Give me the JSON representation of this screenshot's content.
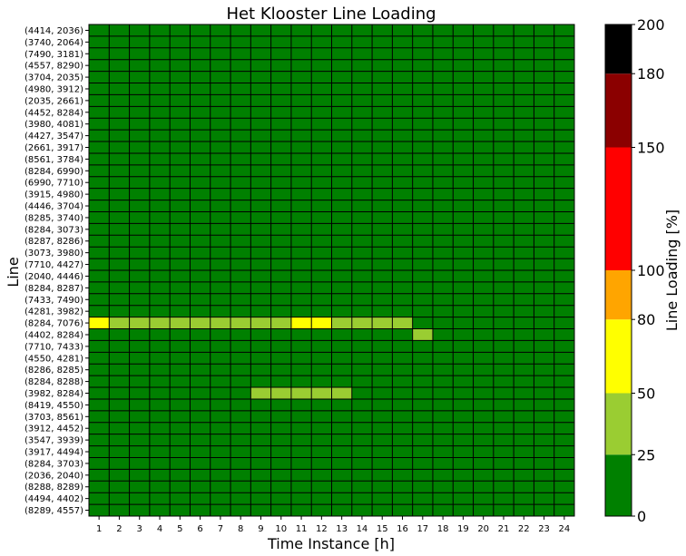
{
  "chart_data": {
    "type": "heatmap",
    "title": "Het Klooster Line Loading",
    "xlabel": "Time Instance [h]",
    "ylabel": "Line",
    "colorbar_label": "Line Loading [%]",
    "x_categories": [
      "1",
      "2",
      "3",
      "4",
      "5",
      "6",
      "7",
      "8",
      "9",
      "10",
      "11",
      "12",
      "13",
      "14",
      "15",
      "16",
      "17",
      "18",
      "19",
      "20",
      "21",
      "22",
      "23",
      "24"
    ],
    "y_categories": [
      "(4414, 2036)",
      "(3740, 2064)",
      "(7490, 3181)",
      "(4557, 8290)",
      "(3704, 2035)",
      "(4980, 3912)",
      "(2035, 2661)",
      "(4452, 8284)",
      "(3980, 4081)",
      "(4427, 3547)",
      "(2661, 3917)",
      "(8561, 3784)",
      "(8284, 6990)",
      "(6990, 7710)",
      "(3915, 4980)",
      "(4446, 3704)",
      "(8285, 3740)",
      "(8284, 3073)",
      "(8287, 8286)",
      "(3073, 3980)",
      "(7710, 4427)",
      "(2040, 4446)",
      "(8284, 8287)",
      "(7433, 7490)",
      "(4281, 3982)",
      "(8284, 7076)",
      "(4402, 8284)",
      "(7710, 7433)",
      "(4550, 4281)",
      "(8286, 8285)",
      "(8284, 8288)",
      "(3982, 8284)",
      "(8419, 4550)",
      "(3703, 8561)",
      "(3912, 4452)",
      "(3547, 3939)",
      "(3917, 4494)",
      "(8284, 3703)",
      "(2036, 2040)",
      "(8288, 8289)",
      "(4494, 4402)",
      "(8289, 4557)"
    ],
    "color_bins": {
      "bounds": [
        0,
        25,
        50,
        80,
        100,
        150,
        180,
        200
      ],
      "colors": [
        "#008000",
        "#9acd32",
        "#ffff00",
        "#ffa500",
        "#ff0000",
        "#8b0000",
        "#000000"
      ],
      "tick_labels": [
        "0",
        "25",
        "50",
        "80",
        "100",
        "150",
        "180",
        "200"
      ]
    },
    "default_value": 10,
    "highlights": [
      {
        "row": "(8284, 7076)",
        "values": [
          55,
          35,
          35,
          35,
          35,
          35,
          35,
          35,
          35,
          35,
          55,
          55,
          35,
          35,
          35,
          35,
          10,
          10,
          10,
          10,
          10,
          10,
          10,
          10
        ]
      },
      {
        "row": "(4402, 8284)",
        "values": [
          10,
          10,
          10,
          10,
          10,
          10,
          10,
          10,
          10,
          10,
          10,
          10,
          10,
          10,
          10,
          10,
          35,
          10,
          10,
          10,
          10,
          10,
          10,
          10
        ]
      },
      {
        "row": "(3982, 8284)",
        "values": [
          10,
          10,
          10,
          10,
          10,
          10,
          10,
          10,
          35,
          35,
          35,
          35,
          35,
          10,
          10,
          10,
          10,
          10,
          10,
          10,
          10,
          10,
          10,
          10
        ]
      }
    ]
  }
}
